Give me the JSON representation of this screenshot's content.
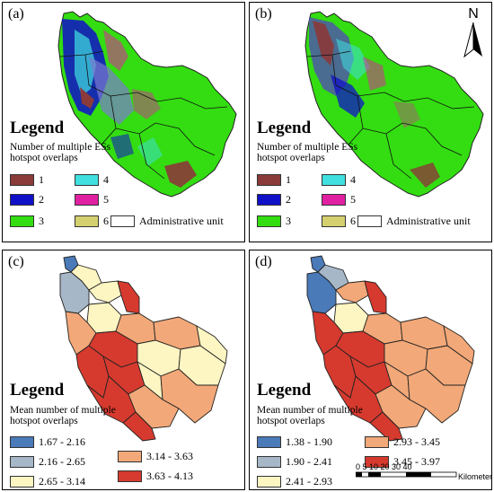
{
  "panels": {
    "a": {
      "label": "(a)"
    },
    "b": {
      "label": "(b)"
    },
    "c": {
      "label": "(c)"
    },
    "d": {
      "label": "(d)"
    }
  },
  "overlap_legend": {
    "title": "Legend",
    "subtitle": "Number of multiple ESs hotspot overlaps",
    "items": [
      {
        "label": "1",
        "color": "#8b3a3a"
      },
      {
        "label": "4",
        "color": "#40e0e0"
      },
      {
        "label": "2",
        "color": "#1010c8"
      },
      {
        "label": "5",
        "color": "#e020a0"
      },
      {
        "label": "3",
        "color": "#33dd11"
      },
      {
        "label": "6",
        "color": "#d4d070"
      }
    ],
    "admin_label": "Administrative unit"
  },
  "north_arrow": {
    "label": "N"
  },
  "legend_c": {
    "title": "Legend",
    "subtitle": "Mean number of multiple hotspot overlaps",
    "items": [
      {
        "label": "1.67 - 2.16",
        "color": "#4a7ab8"
      },
      {
        "label": "3.14 - 3.63",
        "color": "#f2a878"
      },
      {
        "label": "2.16 - 2.65",
        "color": "#a6b8c8"
      },
      {
        "label": "3.63 - 4.13",
        "color": "#d63a2e"
      },
      {
        "label": "2.65 - 3.14",
        "color": "#fdf5c2"
      }
    ]
  },
  "legend_d": {
    "title": "Legend",
    "subtitle": "Mean number of multiple hotspot overlaps",
    "items": [
      {
        "label": "1.38 - 1.90",
        "color": "#4a7ab8"
      },
      {
        "label": "2.93 - 3.45",
        "color": "#f2a878"
      },
      {
        "label": "1.90 - 2.41",
        "color": "#a6b8c8"
      },
      {
        "label": "3.45 - 3.97",
        "color": "#d63a2e"
      },
      {
        "label": "2.41 - 2.93",
        "color": "#fdf5c2"
      }
    ]
  },
  "scale": {
    "ticks": "0  5 10    20        30        40",
    "unit": "Kilometers"
  }
}
